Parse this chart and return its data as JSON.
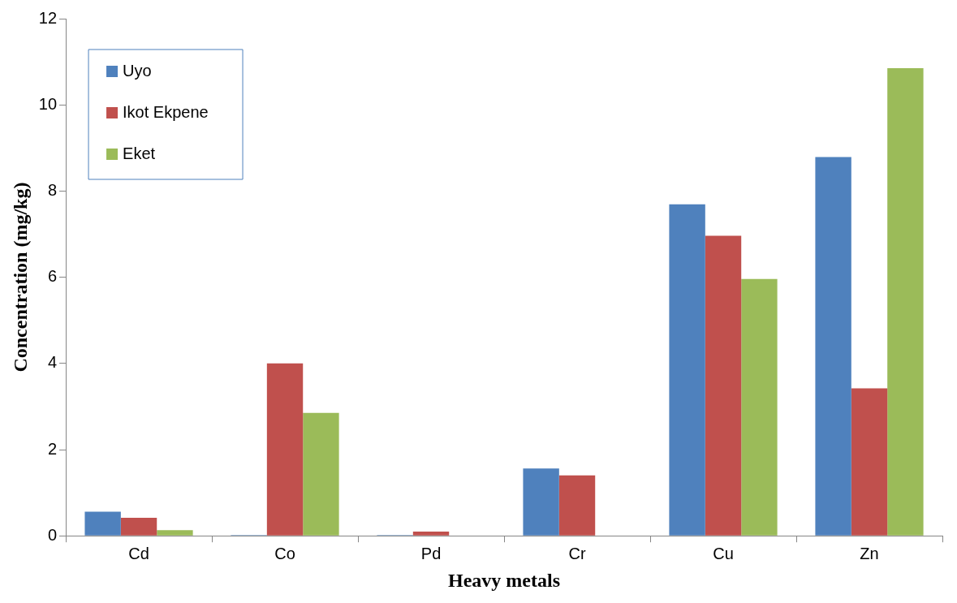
{
  "chart_data": {
    "type": "bar",
    "xlabel": "Heavy metals",
    "ylabel": "Concentration (mg/kg)",
    "categories": [
      "Cd",
      "Co",
      "Pd",
      "Cr",
      "Cu",
      "Zn"
    ],
    "series": [
      {
        "name": "Uyo",
        "color": "#4f81bd",
        "values": [
          0.56,
          0.02,
          0.02,
          1.56,
          7.69,
          8.79
        ]
      },
      {
        "name": "Ikot Ekpene",
        "color": "#c0504d",
        "values": [
          0.42,
          4.0,
          0.1,
          1.4,
          6.96,
          3.42
        ]
      },
      {
        "name": "Eket",
        "color": "#9bbb59",
        "values": [
          0.13,
          2.85,
          0.01,
          0.01,
          5.96,
          10.85
        ]
      }
    ],
    "ylim": [
      0,
      12
    ],
    "yticks": [
      0,
      2,
      4,
      6,
      8,
      10,
      12
    ],
    "grid": false,
    "legend": "top left"
  }
}
